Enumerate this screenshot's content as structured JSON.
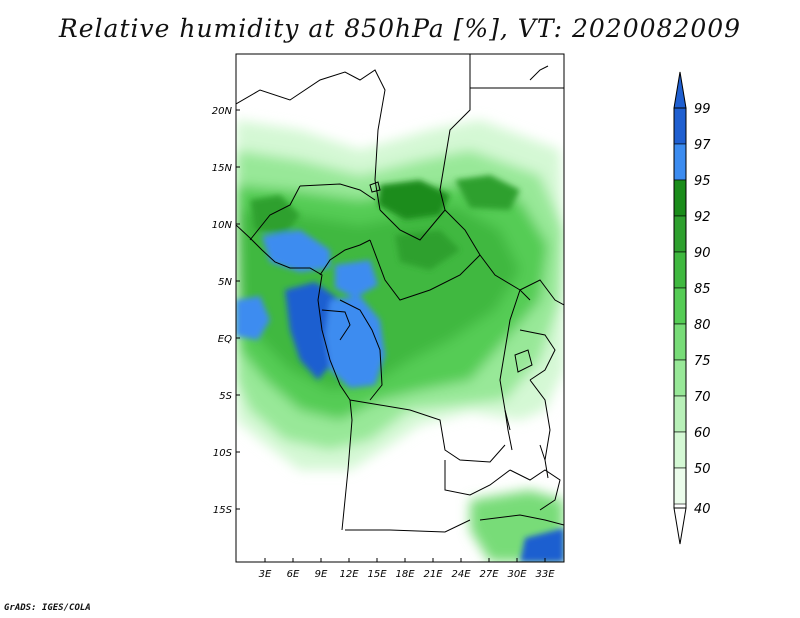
{
  "title": "Relative humidity at 850hPa [%], VT: 2020082009",
  "footer": "GrADS: IGES/COLA",
  "map": {
    "lat_labels": [
      "20N",
      "15N",
      "10N",
      "5N",
      "EQ",
      "5S",
      "10S",
      "15S"
    ],
    "lon_labels": [
      "3E",
      "6E",
      "9E",
      "12E",
      "15E",
      "18E",
      "21E",
      "24E",
      "27E",
      "30E",
      "33E"
    ]
  },
  "legend": {
    "labels": [
      "99",
      "97",
      "95",
      "92",
      "90",
      "85",
      "80",
      "75",
      "70",
      "60",
      "50",
      "40"
    ],
    "colors": [
      "#1f5fd0",
      "#3c8cf0",
      "#1a8c1a",
      "#2ea02e",
      "#3fb83f",
      "#55cc55",
      "#78dc78",
      "#98e898",
      "#b8f0b8",
      "#d4f8d4",
      "#ebfceb",
      "#ffffff"
    ]
  },
  "colors": {
    "background": "#ffffff",
    "border": "#000000",
    "deep_blue": "#1f5fd0",
    "blue": "#3c8cf0",
    "dark_green": "#1a8c1a",
    "green": "#3fb83f",
    "light_green": "#98e898",
    "pale_green": "#d4f8d4"
  }
}
